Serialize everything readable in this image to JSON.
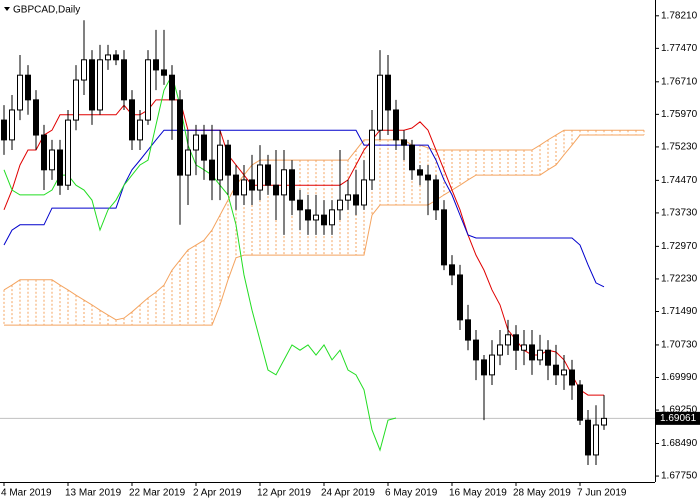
{
  "chart_data": {
    "type": "candlestick",
    "title": "GBPCAD,Daily",
    "categories": [
      "4 Mar 2019",
      null,
      null,
      null,
      null,
      null,
      null,
      null,
      "13 Mar 2019",
      null,
      null,
      null,
      null,
      null,
      null,
      null,
      "22 Mar 2019",
      null,
      null,
      null,
      null,
      null,
      null,
      null,
      "2 Apr 2019",
      null,
      null,
      null,
      null,
      null,
      null,
      null,
      "12 Apr 2019",
      null,
      null,
      null,
      null,
      null,
      null,
      null,
      "24 Apr 2019",
      null,
      null,
      null,
      null,
      null,
      null,
      null,
      "6 May 2019",
      null,
      null,
      null,
      null,
      null,
      null,
      null,
      "16 May 2019",
      null,
      null,
      null,
      null,
      null,
      null,
      null,
      "28 May 2019",
      null,
      null,
      null,
      null,
      null,
      null,
      null,
      "7 Jun 2019",
      null,
      null,
      null,
      null,
      null,
      null,
      null,
      null
    ],
    "open": [
      1.7584,
      1.7539,
      1.7607,
      1.7686,
      1.763,
      1.755,
      1.7471,
      1.7516,
      1.7436,
      1.7584,
      1.7675,
      1.7721,
      1.7607,
      1.7721,
      1.7732,
      1.7721,
      1.763,
      1.7539,
      1.7584,
      1.7721,
      1.7698,
      1.7686,
      1.763,
      1.7459,
      1.7516,
      1.755,
      1.7493,
      1.7448,
      1.7527,
      1.7459,
      1.7414,
      1.7448,
      1.7425,
      1.7482,
      1.7436,
      1.7414,
      1.7471,
      1.7402,
      1.738,
      1.7357,
      1.7368,
      1.7346,
      1.738,
      1.7402,
      1.7414,
      1.7391,
      1.7448,
      1.7561,
      1.7686,
      1.7607,
      1.7539,
      1.7527,
      1.7471,
      1.7459,
      1.7448,
      1.738,
      1.7255,
      1.7232,
      1.713,
      1.7084,
      1.7039,
      1.7005,
      1.705,
      1.7073,
      1.7096,
      1.7061,
      1.7073,
      1.7039,
      1.7061,
      1.7027,
      1.7005,
      1.7016,
      1.6982,
      1.6902,
      1.6823,
      1.6891,
      null,
      null,
      null,
      null,
      null
    ],
    "high": [
      1.7618,
      1.7641,
      1.7732,
      1.7709,
      1.7652,
      1.7573,
      1.7539,
      1.7539,
      1.7607,
      1.7709,
      1.7811,
      1.7743,
      1.7755,
      1.7755,
      1.7743,
      1.7743,
      1.7652,
      1.7607,
      1.7743,
      1.7789,
      1.7789,
      1.7709,
      1.7652,
      1.7561,
      1.7573,
      1.7573,
      1.7573,
      1.7561,
      1.7539,
      1.7482,
      1.7482,
      1.7505,
      1.7527,
      1.7505,
      1.7516,
      1.7516,
      1.7493,
      1.7425,
      1.7414,
      1.7414,
      1.7402,
      1.7402,
      1.7516,
      1.7448,
      1.7471,
      1.7493,
      1.7607,
      1.7743,
      1.7732,
      1.763,
      1.7561,
      1.7539,
      1.7482,
      1.7482,
      1.7459,
      1.7402,
      1.7277,
      1.7255,
      1.7164,
      1.7107,
      1.705,
      1.7084,
      1.7107,
      1.713,
      1.7118,
      1.7107,
      1.7107,
      1.7096,
      1.7084,
      1.7073,
      1.705,
      1.7039,
      1.6993,
      1.6925,
      1.6936,
      1.6959,
      null,
      null,
      null,
      null,
      null
    ],
    "low": [
      1.7505,
      1.7516,
      1.7584,
      1.7596,
      1.7516,
      1.7425,
      1.7448,
      1.7414,
      1.7425,
      1.7561,
      1.7641,
      1.7573,
      1.7596,
      1.7698,
      1.7709,
      1.7607,
      1.7516,
      1.7516,
      1.7573,
      1.7652,
      1.7664,
      1.7539,
      1.7346,
      1.7391,
      1.7459,
      1.7448,
      1.7402,
      1.7402,
      1.7414,
      1.738,
      1.7391,
      1.7391,
      1.7402,
      1.7414,
      1.7357,
      1.7323,
      1.7368,
      1.7334,
      1.7323,
      1.7323,
      1.7323,
      1.7323,
      1.7357,
      1.738,
      1.7368,
      1.738,
      1.7425,
      1.7539,
      1.755,
      1.7516,
      1.7493,
      1.7448,
      1.7436,
      1.7368,
      1.7357,
      1.7243,
      1.7209,
      1.7107,
      1.7061,
      1.6993,
      1.6902,
      1.6982,
      1.7027,
      1.705,
      1.7016,
      1.7027,
      1.7005,
      1.7027,
      1.6993,
      1.6982,
      1.6971,
      1.6948,
      1.6891,
      1.68,
      1.68,
      1.688,
      null,
      null,
      null,
      null,
      null
    ],
    "close": [
      1.7539,
      1.7607,
      1.7686,
      1.763,
      1.755,
      1.7471,
      1.7516,
      1.7436,
      1.7584,
      1.7675,
      1.7721,
      1.7607,
      1.7721,
      1.7732,
      1.7721,
      1.763,
      1.7539,
      1.7584,
      1.7721,
      1.7698,
      1.7686,
      1.763,
      1.7459,
      1.7516,
      1.755,
      1.7493,
      1.7448,
      1.7527,
      1.7459,
      1.7414,
      1.7448,
      1.7425,
      1.7482,
      1.7436,
      1.7414,
      1.7471,
      1.7402,
      1.738,
      1.7357,
      1.7368,
      1.7346,
      1.738,
      1.7402,
      1.7414,
      1.7391,
      1.7448,
      1.7561,
      1.7686,
      1.7607,
      1.7539,
      1.7527,
      1.7471,
      1.7459,
      1.7448,
      1.738,
      1.7255,
      1.7232,
      1.713,
      1.7084,
      1.7039,
      1.7005,
      1.705,
      1.7073,
      1.7096,
      1.7061,
      1.7073,
      1.7039,
      1.7061,
      1.7027,
      1.7005,
      1.7016,
      1.6982,
      1.6902,
      1.6823,
      1.6891,
      1.69061,
      null,
      null,
      null,
      null,
      null
    ],
    "up_color": "#ffffff",
    "down_color": "#000000",
    "candle_outline": "#000000",
    "series": [
      {
        "color": "#e00000",
        "values": [
          1.738,
          1.7425,
          1.7482,
          1.7516,
          1.7516,
          1.755,
          1.7561,
          1.7596,
          1.7596,
          1.7596,
          1.7596,
          1.7596,
          1.7596,
          1.7596,
          1.7596,
          1.7618,
          1.7596,
          1.7596,
          1.7607,
          1.763,
          1.763,
          1.763,
          1.763,
          1.7561,
          1.7561,
          1.7561,
          1.7561,
          1.7561,
          1.7505,
          1.7482,
          1.7459,
          1.7436,
          1.7436,
          1.7436,
          1.7436,
          1.7436,
          1.7436,
          1.7436,
          1.7436,
          1.7436,
          1.7436,
          1.7436,
          1.7436,
          1.7448,
          1.7482,
          1.7516,
          1.7539,
          1.7561,
          1.7561,
          1.7561,
          1.7561,
          1.7566,
          1.758,
          1.7561,
          1.7516,
          1.7471,
          1.7425,
          1.738,
          1.7323,
          1.7277,
          1.7243,
          1.7198,
          1.7164,
          1.7107,
          1.7084,
          1.7061,
          1.705,
          1.705,
          1.7061,
          1.7057,
          1.7039,
          1.7005,
          1.6971,
          1.6959,
          1.6959,
          1.6959,
          null,
          null,
          null,
          null,
          null
        ]
      },
      {
        "color": "#0000cc",
        "values": [
          1.73,
          1.7334,
          1.7346,
          1.7346,
          1.7346,
          1.7346,
          1.7384,
          1.7384,
          1.7384,
          1.7384,
          1.7384,
          1.7384,
          1.7384,
          1.7384,
          1.7384,
          1.7436,
          1.7471,
          1.7493,
          1.7516,
          1.7539,
          1.7561,
          1.7561,
          1.7561,
          1.7561,
          1.7561,
          1.7561,
          1.7561,
          1.7561,
          1.7561,
          1.7561,
          1.7561,
          1.7561,
          1.7561,
          1.7561,
          1.7561,
          1.7561,
          1.7561,
          1.7561,
          1.7561,
          1.7561,
          1.7561,
          1.7561,
          1.7561,
          1.7561,
          1.7561,
          1.7527,
          1.7527,
          1.7527,
          1.7527,
          1.7527,
          1.7527,
          1.7527,
          1.7527,
          1.7527,
          1.7493,
          1.7448,
          1.7414,
          1.7368,
          1.7323,
          1.7316,
          1.7316,
          1.7316,
          1.7316,
          1.7316,
          1.7316,
          1.7316,
          1.7316,
          1.7316,
          1.7316,
          1.7316,
          1.7316,
          1.7316,
          1.73,
          1.7255,
          1.7214,
          1.7205,
          null,
          null,
          null,
          null,
          null
        ]
      },
      {
        "color": "#22dd22",
        "values": [
          1.7471,
          1.7425,
          1.7414,
          1.7414,
          1.7414,
          1.7414,
          1.7425,
          1.7459,
          1.7459,
          1.7436,
          1.7425,
          1.7402,
          1.7334,
          1.738,
          1.7402,
          1.7436,
          1.7459,
          1.7482,
          1.7493,
          1.7573,
          1.7652,
          1.7686,
          1.7618,
          1.7527,
          1.7482,
          1.7471,
          1.7459,
          1.7436,
          1.7414,
          1.7346,
          1.7232,
          1.7152,
          1.7084,
          1.7016,
          1.7005,
          1.7039,
          1.7073,
          1.7061,
          1.7073,
          1.705,
          1.7073,
          1.7039,
          1.7061,
          1.7016,
          1.7005,
          1.6971,
          1.688,
          1.6834,
          1.6902,
          1.6907,
          null,
          null,
          null,
          null,
          null,
          null,
          null,
          null,
          null,
          null,
          null,
          null,
          null,
          null,
          null,
          null,
          null,
          null,
          null,
          null,
          null,
          null,
          null,
          null,
          null,
          null,
          null,
          null,
          null,
          null,
          null
        ]
      }
    ],
    "cloud": {
      "color": "#f4a460",
      "upper": [
        1.7198,
        1.7209,
        1.7221,
        1.7221,
        1.7221,
        1.7221,
        1.7221,
        1.7209,
        1.7198,
        1.7186,
        1.7175,
        1.7164,
        1.7152,
        1.7141,
        1.713,
        1.7134,
        1.7148,
        1.7164,
        1.718,
        1.7193,
        1.7209,
        1.7243,
        1.7266,
        1.7289,
        1.73,
        1.7311,
        1.7334,
        1.7368,
        1.7402,
        1.7436,
        1.7459,
        1.7482,
        1.7493,
        1.7493,
        1.7493,
        1.7493,
        1.7493,
        1.7493,
        1.7493,
        1.7493,
        1.7493,
        1.7493,
        1.7493,
        1.7493,
        1.7516,
        1.7539,
        1.7539,
        1.7539,
        1.7539,
        1.7539,
        1.7539,
        1.7527,
        1.7527,
        1.7521,
        1.7516,
        1.7516,
        1.7516,
        1.7516,
        1.7516,
        1.7516,
        1.7516,
        1.7516,
        1.7516,
        1.7516,
        1.7516,
        1.7516,
        1.7516,
        1.7527,
        1.7539,
        1.755,
        1.7561,
        1.7561,
        1.7561,
        1.7561,
        1.7561,
        1.7561,
        1.7561,
        1.7561,
        1.7561,
        1.7561,
        1.7561
      ],
      "lower": [
        1.7118,
        1.7118,
        1.7118,
        1.7118,
        1.7118,
        1.7118,
        1.7118,
        1.7118,
        1.7118,
        1.7118,
        1.7118,
        1.7118,
        1.7118,
        1.7118,
        1.7118,
        1.7118,
        1.7118,
        1.7118,
        1.7118,
        1.7118,
        1.7118,
        1.7118,
        1.7118,
        1.7118,
        1.7118,
        1.7118,
        1.7118,
        1.7164,
        1.7221,
        1.7271,
        1.7277,
        1.7277,
        1.7277,
        1.7277,
        1.7277,
        1.7277,
        1.7277,
        1.7277,
        1.7277,
        1.7277,
        1.7277,
        1.7277,
        1.7277,
        1.7277,
        1.7277,
        1.7277,
        1.7368,
        1.7391,
        1.7391,
        1.7391,
        1.7391,
        1.7391,
        1.7391,
        1.7391,
        1.7402,
        1.7414,
        1.7425,
        1.7436,
        1.7448,
        1.7459,
        1.7459,
        1.7459,
        1.7459,
        1.7459,
        1.7459,
        1.7459,
        1.7459,
        1.7459,
        1.7471,
        1.7482,
        1.7505,
        1.7527,
        1.755,
        1.755,
        1.755,
        1.755,
        1.755,
        1.755,
        1.755,
        1.755,
        1.755
      ]
    },
    "ylim": [
      1.67615,
      1.78569
    ],
    "yticks": [
      {
        "value": 1.7821,
        "label": "1.78210"
      },
      {
        "value": 1.7747,
        "label": "1.77470"
      },
      {
        "value": 1.7671,
        "label": "1.76710"
      },
      {
        "value": 1.7597,
        "label": "1.75970"
      },
      {
        "value": 1.7523,
        "label": "1.75230"
      },
      {
        "value": 1.7447,
        "label": "1.74470"
      },
      {
        "value": 1.7373,
        "label": "1.73730"
      },
      {
        "value": 1.7297,
        "label": "1.72970"
      },
      {
        "value": 1.7223,
        "label": "1.72230"
      },
      {
        "value": 1.7149,
        "label": "1.71490"
      },
      {
        "value": 1.7073,
        "label": "1.70730"
      },
      {
        "value": 1.6999,
        "label": "1.69990"
      },
      {
        "value": 1.6925,
        "label": "1.69250"
      },
      {
        "value": 1.6849,
        "label": "1.68490"
      },
      {
        "value": 1.6775,
        "label": "1.67750"
      }
    ]
  }
}
